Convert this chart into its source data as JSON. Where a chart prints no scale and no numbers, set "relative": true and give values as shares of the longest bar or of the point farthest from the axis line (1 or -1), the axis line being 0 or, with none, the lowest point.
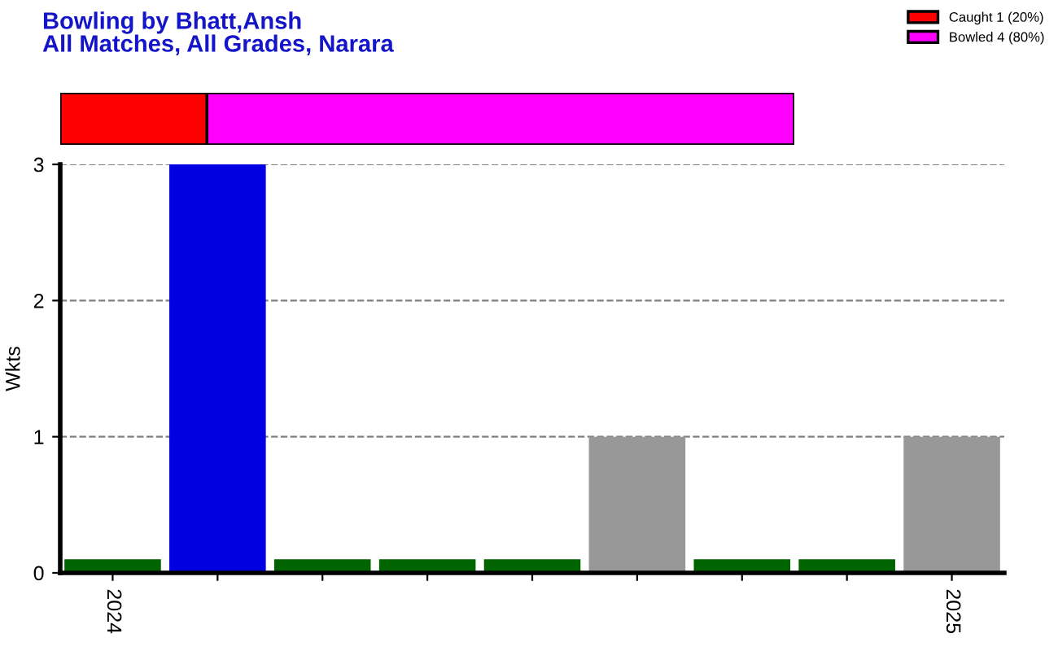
{
  "chart_data": [
    {
      "type": "bar",
      "orientation": "horizontal",
      "stacked": true,
      "relative": true,
      "title": "Bowling by Bhatt,Ansh",
      "subtitle": "All Matches, All Grades, Narara",
      "categories": [
        null
      ],
      "legend": "top right",
      "series": [
        {
          "name": "Caught 1 (20%)",
          "color": "#ff0000",
          "values": [
            0.2
          ]
        },
        {
          "name": "Bowled 4 (80%)",
          "color": "#ff00ff",
          "values": [
            0.8
          ]
        }
      ]
    },
    {
      "type": "bar",
      "ylabel": "Wkts",
      "categories": [
        "2024",
        null,
        null,
        null,
        null,
        null,
        null,
        null,
        "2025"
      ],
      "values": [
        0.1,
        3,
        0.1,
        0.1,
        0.1,
        1,
        0.1,
        0.1,
        1
      ],
      "colors": [
        "#006400",
        "#0000e0",
        "#006400",
        "#006400",
        "#006400",
        "#989898",
        "#006400",
        "#006400",
        "#989898"
      ],
      "ylim": [
        0,
        3
      ],
      "yticks": [
        0,
        1,
        2,
        3
      ],
      "grid": "y"
    }
  ]
}
